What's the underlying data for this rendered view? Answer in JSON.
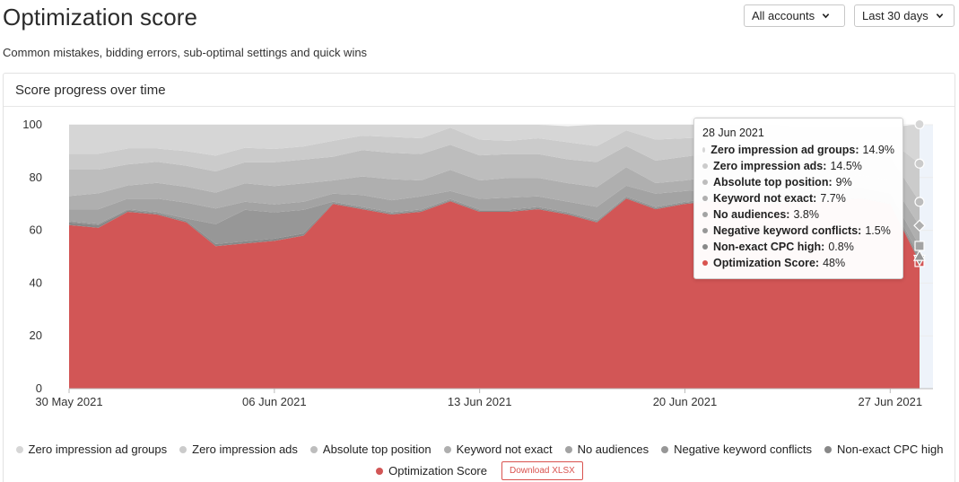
{
  "header": {
    "title": "Optimization score",
    "subtitle": "Common mistakes, bidding errors, sub-optimal settings and quick wins",
    "accounts_dropdown": "All accounts",
    "period_dropdown": "Last 30 days"
  },
  "card": {
    "title": "Score progress over time"
  },
  "tooltip": {
    "date": "28 Jun 2021",
    "rows": [
      {
        "name": "Zero impression ad groups:",
        "value": "14.9%",
        "color": "#d6d6d6"
      },
      {
        "name": "Zero impression ads:",
        "value": "14.5%",
        "color": "#cbcbcb"
      },
      {
        "name": "Absolute top position:",
        "value": "9%",
        "color": "#bdbdbd"
      },
      {
        "name": "Keyword not exact:",
        "value": "7.7%",
        "color": "#afafaf"
      },
      {
        "name": "No audiences:",
        "value": "3.8%",
        "color": "#a3a3a3"
      },
      {
        "name": "Negative keyword conflicts:",
        "value": "1.5%",
        "color": "#979797"
      },
      {
        "name": "Non-exact CPC high:",
        "value": "0.8%",
        "color": "#888888"
      },
      {
        "name": "Optimization Score:",
        "value": "48%",
        "color": "#d9534f"
      }
    ]
  },
  "legend": {
    "download_label": "Download XLSX"
  },
  "chart_data": {
    "type": "area",
    "stacked": true,
    "ylim": [
      0,
      100
    ],
    "yticks": [
      0,
      20,
      40,
      60,
      80,
      100
    ],
    "xtick_labels": [
      "30 May 2021",
      "06 Jun 2021",
      "13 Jun 2021",
      "20 Jun 2021",
      "27 Jun 2021"
    ],
    "xtick_index": [
      0,
      7,
      14,
      21,
      28
    ],
    "x": [
      "30 May 2021",
      "31 May 2021",
      "01 Jun 2021",
      "02 Jun 2021",
      "03 Jun 2021",
      "04 Jun 2021",
      "05 Jun 2021",
      "06 Jun 2021",
      "07 Jun 2021",
      "08 Jun 2021",
      "09 Jun 2021",
      "10 Jun 2021",
      "11 Jun 2021",
      "12 Jun 2021",
      "13 Jun 2021",
      "14 Jun 2021",
      "15 Jun 2021",
      "16 Jun 2021",
      "17 Jun 2021",
      "18 Jun 2021",
      "19 Jun 2021",
      "20 Jun 2021",
      "21 Jun 2021",
      "22 Jun 2021",
      "23 Jun 2021",
      "24 Jun 2021",
      "25 Jun 2021",
      "26 Jun 2021",
      "27 Jun 2021",
      "28 Jun 2021"
    ],
    "grid": true,
    "legend_position": "bottom",
    "series": [
      {
        "name": "Optimization Score",
        "color": "#d25656",
        "values": [
          62,
          61,
          67,
          66,
          63,
          54,
          55,
          56,
          58,
          70,
          68,
          66,
          67,
          71,
          67,
          67,
          68,
          66,
          63,
          72,
          68,
          70,
          71,
          71,
          70,
          71,
          71,
          72,
          70,
          48
        ]
      },
      {
        "name": "Non-exact CPC high",
        "color": "#888888",
        "values": [
          1,
          1,
          0.6,
          0.5,
          0.5,
          0.8,
          0.8,
          0.8,
          0.8,
          0.4,
          0.4,
          0.4,
          0.4,
          0.4,
          0.4,
          0.4,
          0.4,
          0.4,
          0.4,
          0.4,
          0.4,
          0.4,
          0.4,
          0.4,
          0.4,
          0.4,
          0.4,
          0.4,
          0.4,
          0.8
        ]
      },
      {
        "name": "Negative keyword conflicts",
        "color": "#979797",
        "values": [
          0.5,
          0.5,
          0.4,
          0.5,
          1,
          7.5,
          12,
          10,
          9,
          0.5,
          0.5,
          0.5,
          0.5,
          0.5,
          0.5,
          0.5,
          0.5,
          0.5,
          0.5,
          0.5,
          0.5,
          0.5,
          0.5,
          0.5,
          0.5,
          0.5,
          0.5,
          0.5,
          0.5,
          1.5
        ]
      },
      {
        "name": "No audiences",
        "color": "#a3a3a3",
        "values": [
          4.5,
          5.5,
          4,
          5,
          6,
          6,
          3,
          3,
          3,
          3,
          4.5,
          4.5,
          5,
          3,
          4,
          4.5,
          4,
          4,
          5,
          4,
          5,
          4,
          3.5,
          3,
          3,
          3,
          3,
          3,
          3,
          3.8
        ]
      },
      {
        "name": "Keyword not exact",
        "color": "#afafaf",
        "values": [
          5,
          6,
          5,
          6,
          6,
          6,
          7,
          7,
          7,
          5,
          7,
          8,
          6,
          8,
          7,
          7.5,
          7,
          7,
          7.5,
          7,
          4,
          4,
          5,
          5,
          6,
          5,
          5,
          5,
          5,
          7.7
        ]
      },
      {
        "name": "Absolute top position",
        "color": "#bdbdbd",
        "values": [
          10,
          9,
          8,
          8,
          8,
          8,
          8,
          9,
          9,
          9,
          10,
          10,
          10,
          9.5,
          9.5,
          9,
          9,
          9,
          9.5,
          8,
          8.5,
          9,
          9,
          9,
          8,
          8,
          8,
          8,
          9,
          9
        ]
      },
      {
        "name": "Zero impression ads",
        "color": "#cbcbcb",
        "values": [
          6,
          6,
          6,
          5,
          5.5,
          6,
          5.5,
          5,
          5,
          6,
          5.5,
          6,
          6,
          6.5,
          6,
          5,
          6,
          6.5,
          6,
          6,
          8,
          7,
          6,
          6,
          6,
          6,
          6,
          6,
          6,
          14.5
        ]
      },
      {
        "name": "Zero impression ad groups",
        "color": "#d6d6d6",
        "values": [
          11,
          11,
          9,
          9,
          10,
          11.7,
          8.7,
          9.2,
          8.2,
          6.1,
          4.1,
          4.6,
          5.1,
          1.1,
          5.6,
          6.1,
          5.1,
          6.1,
          8.1,
          2.1,
          5.6,
          5.1,
          4.6,
          5.1,
          6.1,
          5.1,
          5.1,
          4.1,
          5.1,
          14.9
        ]
      }
    ]
  }
}
